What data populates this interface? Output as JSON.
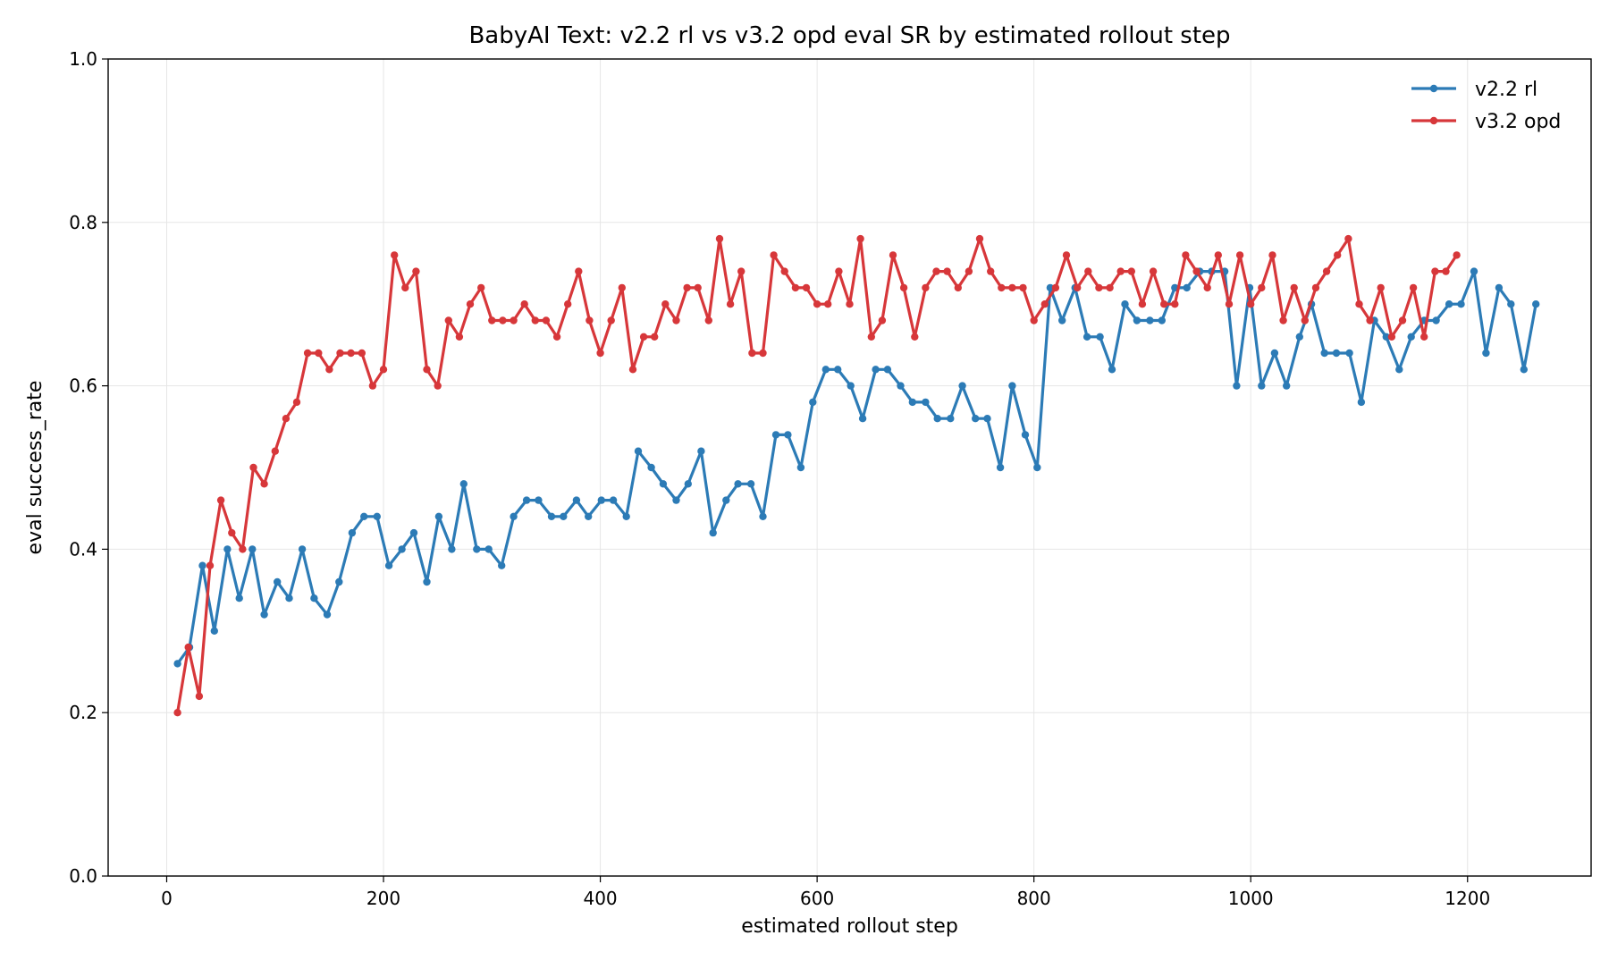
{
  "chart_data": {
    "type": "line",
    "title": "BabyAI Text: v2.2 rl vs v3.2 opd eval SR by estimated rollout step",
    "xlabel": "estimated rollout step",
    "ylabel": "eval success_rate",
    "xlim": [
      -54,
      1314
    ],
    "ylim": [
      0.0,
      1.0
    ],
    "xticks": [
      0,
      200,
      400,
      600,
      800,
      1000,
      1200
    ],
    "yticks": [
      0.0,
      0.2,
      0.4,
      0.6,
      0.8,
      1.0
    ],
    "xtick_labels": [
      "0",
      "200",
      "400",
      "600",
      "800",
      "1000",
      "1200"
    ],
    "ytick_labels": [
      "0.0",
      "0.2",
      "0.4",
      "0.6",
      "0.8",
      "1.0"
    ],
    "grid": true,
    "legend_position": "top-right",
    "series": [
      {
        "name": "v2.2 rl",
        "color": "#2c7bb6",
        "x": [
          10,
          21,
          33,
          44,
          56,
          67,
          79,
          90,
          102,
          113,
          125,
          136,
          148,
          159,
          171,
          182,
          194,
          205,
          217,
          228,
          240,
          251,
          263,
          274,
          286,
          297,
          309,
          320,
          332,
          343,
          355,
          366,
          378,
          389,
          401,
          412,
          424,
          435,
          447,
          458,
          470,
          481,
          493,
          504,
          516,
          527,
          539,
          550,
          562,
          573,
          585,
          596,
          608,
          619,
          631,
          642,
          654,
          665,
          677,
          688,
          700,
          711,
          723,
          734,
          746,
          757,
          769,
          780,
          792,
          803,
          815,
          826,
          838,
          849,
          861,
          872,
          884,
          895,
          907,
          918,
          930,
          941,
          953,
          964,
          976,
          987,
          999,
          1010,
          1022,
          1033,
          1045,
          1056,
          1068,
          1079,
          1091,
          1102,
          1114,
          1125,
          1137,
          1148,
          1160,
          1171,
          1183,
          1194,
          1206,
          1217,
          1229,
          1240,
          1252,
          1263
        ],
        "values": [
          0.26,
          0.28,
          0.38,
          0.3,
          0.4,
          0.34,
          0.4,
          0.32,
          0.36,
          0.34,
          0.4,
          0.34,
          0.32,
          0.36,
          0.42,
          0.44,
          0.44,
          0.38,
          0.4,
          0.42,
          0.36,
          0.44,
          0.4,
          0.48,
          0.4,
          0.4,
          0.38,
          0.44,
          0.46,
          0.46,
          0.44,
          0.44,
          0.46,
          0.44,
          0.46,
          0.46,
          0.44,
          0.52,
          0.5,
          0.48,
          0.46,
          0.48,
          0.52,
          0.42,
          0.46,
          0.48,
          0.48,
          0.44,
          0.54,
          0.54,
          0.5,
          0.58,
          0.62,
          0.62,
          0.6,
          0.56,
          0.62,
          0.62,
          0.6,
          0.58,
          0.58,
          0.56,
          0.56,
          0.6,
          0.56,
          0.56,
          0.5,
          0.6,
          0.54,
          0.5,
          0.72,
          0.68,
          0.72,
          0.66,
          0.66,
          0.62,
          0.7,
          0.68,
          0.68,
          0.68,
          0.72,
          0.72,
          0.74,
          0.74,
          0.74,
          0.6,
          0.72,
          0.6,
          0.64,
          0.6,
          0.66,
          0.7,
          0.64,
          0.64,
          0.64,
          0.58,
          0.68,
          0.66,
          0.62,
          0.66,
          0.68,
          0.68,
          0.7,
          0.7,
          0.74,
          0.64,
          0.72,
          0.7,
          0.62,
          0.7
        ]
      },
      {
        "name": "v3.2 opd",
        "color": "#d7373a",
        "x": [
          10,
          20,
          30,
          40,
          50,
          60,
          70,
          80,
          90,
          100,
          110,
          120,
          130,
          140,
          150,
          160,
          170,
          180,
          190,
          200,
          210,
          220,
          230,
          240,
          250,
          260,
          270,
          280,
          290,
          300,
          310,
          320,
          330,
          340,
          350,
          360,
          370,
          380,
          390,
          400,
          410,
          420,
          430,
          440,
          450,
          460,
          470,
          480,
          490,
          500,
          510,
          520,
          530,
          540,
          550,
          560,
          570,
          580,
          590,
          600,
          610,
          620,
          630,
          640,
          650,
          660,
          670,
          680,
          690,
          700,
          710,
          720,
          730,
          740,
          750,
          760,
          770,
          780,
          790,
          800,
          810,
          820,
          830,
          840,
          850,
          860,
          870,
          880,
          890,
          900,
          910,
          920,
          930,
          940,
          950,
          960,
          970,
          980,
          990,
          1000,
          1010,
          1020,
          1030,
          1040,
          1050,
          1060,
          1070,
          1080,
          1090,
          1100,
          1110,
          1120,
          1130,
          1140,
          1150,
          1160,
          1170,
          1180,
          1190
        ],
        "values": [
          0.2,
          0.28,
          0.22,
          0.38,
          0.46,
          0.42,
          0.4,
          0.5,
          0.48,
          0.52,
          0.56,
          0.58,
          0.64,
          0.64,
          0.62,
          0.64,
          0.64,
          0.64,
          0.6,
          0.62,
          0.76,
          0.72,
          0.74,
          0.62,
          0.6,
          0.68,
          0.66,
          0.7,
          0.72,
          0.68,
          0.68,
          0.68,
          0.7,
          0.68,
          0.68,
          0.66,
          0.7,
          0.74,
          0.68,
          0.64,
          0.68,
          0.72,
          0.62,
          0.66,
          0.66,
          0.7,
          0.68,
          0.72,
          0.72,
          0.68,
          0.78,
          0.7,
          0.74,
          0.64,
          0.64,
          0.76,
          0.74,
          0.72,
          0.72,
          0.7,
          0.7,
          0.74,
          0.7,
          0.78,
          0.66,
          0.68,
          0.76,
          0.72,
          0.66,
          0.72,
          0.74,
          0.74,
          0.72,
          0.74,
          0.78,
          0.74,
          0.72,
          0.72,
          0.72,
          0.68,
          0.7,
          0.72,
          0.76,
          0.72,
          0.74,
          0.72,
          0.72,
          0.74,
          0.74,
          0.7,
          0.74,
          0.7,
          0.7,
          0.76,
          0.74,
          0.72,
          0.76,
          0.7,
          0.76,
          0.7,
          0.72,
          0.76,
          0.68,
          0.72,
          0.68,
          0.72,
          0.74,
          0.76,
          0.78,
          0.7,
          0.68,
          0.72,
          0.66,
          0.68,
          0.72,
          0.66,
          0.74,
          0.74,
          0.76
        ]
      }
    ]
  }
}
